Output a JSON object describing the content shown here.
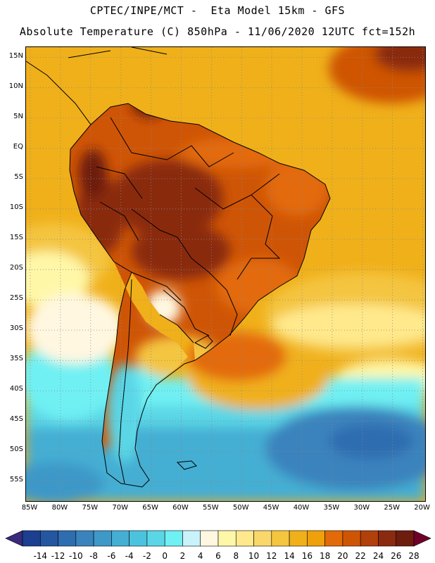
{
  "header": {
    "line1": "CPTEC/INPE/MCT -  Eta Model 15km - GFS",
    "line2": "Absolute Temperature (C) 850hPa - 11/06/2020 12UTC fct=152h"
  },
  "map": {
    "lat_labels": [
      "15N",
      "10N",
      "5N",
      "EQ",
      "5S",
      "10S",
      "15S",
      "20S",
      "25S",
      "30S",
      "35S",
      "40S",
      "45S",
      "50S",
      "55S"
    ],
    "lat_values": [
      15,
      10,
      5,
      0,
      -5,
      -10,
      -15,
      -20,
      -25,
      -30,
      -35,
      -40,
      -45,
      -50,
      -55
    ],
    "lon_labels": [
      "85W",
      "80W",
      "75W",
      "70W",
      "65W",
      "60W",
      "55W",
      "50W",
      "45W",
      "40W",
      "35W",
      "30W",
      "25W",
      "20W"
    ],
    "lon_values": [
      -85,
      -80,
      -75,
      -70,
      -65,
      -60,
      -55,
      -50,
      -45,
      -40,
      -35,
      -30,
      -25,
      -20
    ],
    "extent": {
      "lon_min": -85.7,
      "lon_max": -19.6,
      "lat_min": -58.2,
      "lat_max": 16.7
    }
  },
  "colorbar": {
    "labels": [
      "-14",
      "-12",
      "-10",
      "-8",
      "-6",
      "-4",
      "-2",
      "0",
      "2",
      "4",
      "6",
      "8",
      "10",
      "12",
      "14",
      "16",
      "18",
      "20",
      "22",
      "24",
      "26",
      "28"
    ],
    "colors": [
      "#1c3f8f",
      "#2457a0",
      "#2e6db0",
      "#3a83bd",
      "#3e98c8",
      "#45aed3",
      "#4cc3de",
      "#5ad6e6",
      "#6ff0f3",
      "#c9f3fb",
      "#fff7e0",
      "#fff7a8",
      "#ffe98c",
      "#f9d76b",
      "#f4c53f",
      "#f0b01a",
      "#eea10b",
      "#e36a08",
      "#cf5506",
      "#b2400a",
      "#8a2a10",
      "#6d1c0e"
    ],
    "low_arrow": "#3a2a7a",
    "high_arrow": "#70002a"
  },
  "colors": {
    "ocean_warm": "#f0b01a",
    "ocean_cool": "#ffe98c",
    "ocean_cold": "#4cc3de",
    "ocean_deep": "#3a83bd",
    "land_hot": "#b2400a",
    "land_very_hot": "#8a2a10",
    "gridline": "#888888",
    "border": "#000000"
  }
}
